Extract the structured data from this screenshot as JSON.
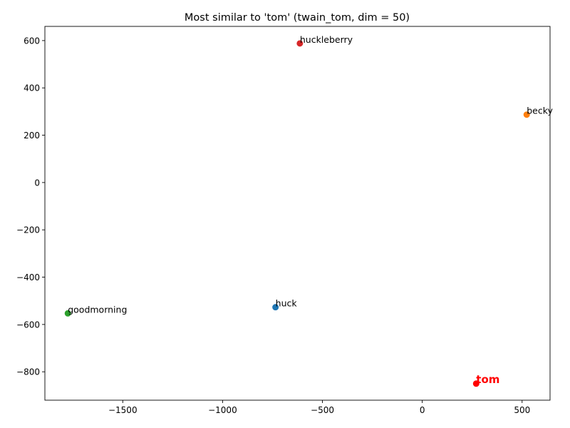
{
  "chart_data": {
    "type": "scatter",
    "title": "Most similar to 'tom' (twain_tom, dim = 50)",
    "xlabel": "",
    "ylabel": "",
    "xlim": [
      -1890,
      640
    ],
    "ylim": [
      -920,
      660
    ],
    "xticks": [
      -1500,
      -1000,
      -500,
      0,
      500
    ],
    "yticks": [
      -800,
      -600,
      -400,
      -200,
      0,
      200,
      400,
      600
    ],
    "grid": false,
    "points": [
      {
        "label": "huck",
        "x": -735,
        "y": -527,
        "color": "#1f77b4",
        "highlight": false
      },
      {
        "label": "becky",
        "x": 523,
        "y": 287,
        "color": "#ff7f0e",
        "highlight": false
      },
      {
        "label": "goodmorning",
        "x": -1775,
        "y": -553,
        "color": "#2ca02c",
        "highlight": false
      },
      {
        "label": "huckleberry",
        "x": -613,
        "y": 588,
        "color": "#d62728",
        "highlight": false
      },
      {
        "label": "tom",
        "x": 270,
        "y": -850,
        "color": "#ff0000",
        "highlight": true
      }
    ]
  }
}
